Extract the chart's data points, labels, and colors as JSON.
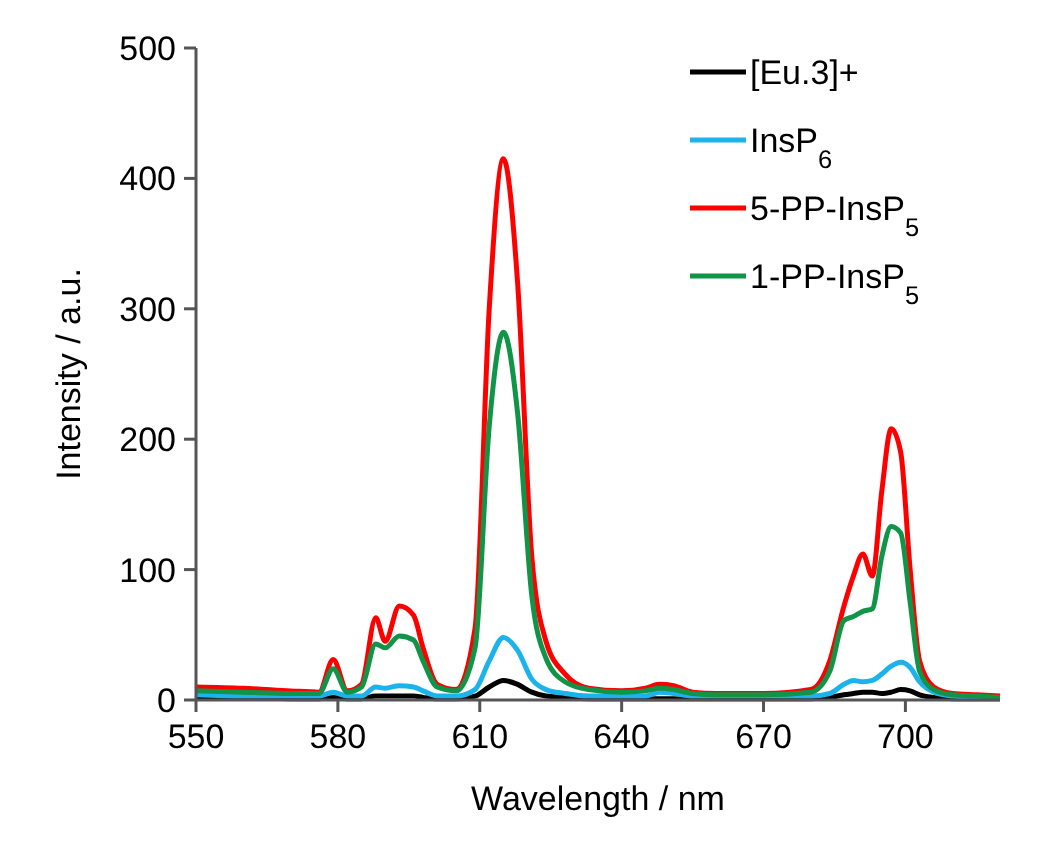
{
  "chart_data": {
    "type": "line",
    "xlabel": "Wavelength / nm",
    "ylabel": "Intensity / a.u.",
    "x": [
      550,
      560,
      570,
      576,
      579,
      582,
      585,
      588,
      590,
      593,
      596,
      598,
      601,
      605,
      609,
      612,
      615,
      618,
      621,
      624,
      628,
      633,
      640,
      645,
      648,
      651,
      655,
      660,
      670,
      680,
      684,
      687,
      689,
      691,
      693,
      695,
      697,
      699,
      701,
      703,
      706,
      710,
      715,
      720
    ],
    "series": [
      {
        "name": "[Eu.3]+",
        "color": "#000000",
        "values": [
          2,
          2,
          1,
          1,
          2,
          1,
          1,
          3,
          3,
          3,
          3,
          2,
          1,
          1,
          3,
          10,
          15,
          12,
          6,
          3,
          2,
          1,
          1,
          1,
          1,
          1,
          1,
          1,
          1,
          1,
          2,
          4,
          5,
          6,
          6,
          5,
          6,
          8,
          7,
          4,
          2,
          1,
          1,
          1
        ]
      },
      {
        "name": "InsP$_{6}$",
        "color": "#1cb3ec",
        "values": [
          4,
          3,
          3,
          3,
          6,
          3,
          3,
          10,
          9,
          11,
          10,
          7,
          3,
          3,
          8,
          30,
          48,
          38,
          16,
          8,
          5,
          3,
          3,
          3,
          6,
          5,
          3,
          3,
          3,
          3,
          5,
          12,
          15,
          14,
          15,
          20,
          26,
          29,
          25,
          14,
          6,
          3,
          2,
          2
        ]
      },
      {
        "name": "5-PP-InsP$_{5}$",
        "color": "#ff0000",
        "values": [
          10,
          9,
          7,
          6,
          31,
          7,
          12,
          63,
          45,
          72,
          65,
          40,
          12,
          8,
          55,
          300,
          415,
          320,
          110,
          45,
          20,
          9,
          7,
          9,
          12,
          11,
          6,
          5,
          5,
          8,
          30,
          72,
          95,
          112,
          95,
          160,
          208,
          190,
          100,
          30,
          10,
          5,
          4,
          3
        ]
      },
      {
        "name": "1-PP-InsP$_{5}$",
        "color": "#109447",
        "values": [
          7,
          6,
          5,
          5,
          24,
          6,
          10,
          43,
          40,
          49,
          46,
          30,
          10,
          7,
          40,
          210,
          282,
          220,
          80,
          32,
          14,
          8,
          6,
          7,
          9,
          8,
          5,
          4,
          4,
          6,
          22,
          61,
          64,
          68,
          70,
          110,
          133,
          128,
          75,
          22,
          8,
          4,
          3,
          2
        ]
      }
    ],
    "xlim": [
      550,
      720
    ],
    "xticks": [
      550,
      580,
      610,
      640,
      670,
      700
    ],
    "ylim": [
      0,
      500
    ],
    "yticks": [
      0,
      100,
      200,
      300,
      400,
      500
    ],
    "grid": false,
    "legend": "top right",
    "line_style": "solid",
    "marker": "none"
  }
}
